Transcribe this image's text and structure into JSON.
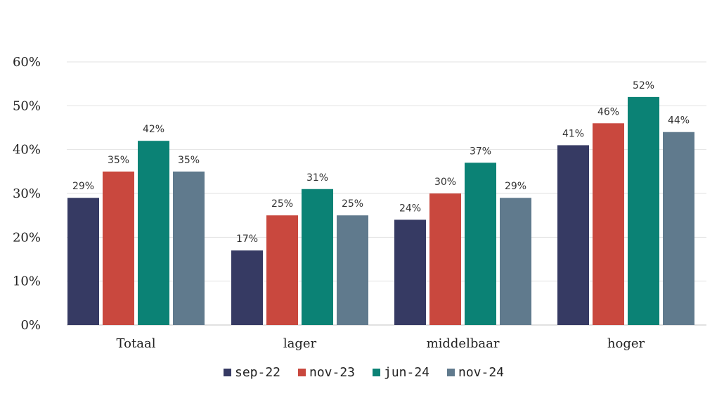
{
  "chart_data": {
    "type": "bar",
    "title": "",
    "xlabel": "",
    "ylabel": "",
    "categories": [
      "Totaal",
      "lager",
      "middelbaar",
      "hoger"
    ],
    "series": [
      {
        "name": "sep-22",
        "color": "#363a63",
        "values": [
          29,
          17,
          24,
          41
        ]
      },
      {
        "name": "nov-23",
        "color": "#c9483e",
        "values": [
          35,
          25,
          30,
          46
        ]
      },
      {
        "name": "jun-24",
        "color": "#0b8275",
        "values": [
          42,
          31,
          37,
          52
        ]
      },
      {
        "name": "nov-24",
        "color": "#607a8d",
        "values": [
          35,
          25,
          29,
          44
        ]
      }
    ],
    "ylim": [
      0,
      60
    ],
    "yticks": [
      0,
      10,
      20,
      30,
      40,
      50,
      60
    ],
    "ytick_labels": [
      "0%",
      "10%",
      "20%",
      "30%",
      "40%",
      "50%",
      "60%"
    ],
    "value_suffix": "%",
    "grid": true,
    "legend_position": "bottom"
  }
}
